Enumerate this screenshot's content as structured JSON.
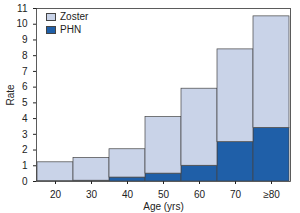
{
  "chart_data": {
    "type": "bar",
    "stacked": true,
    "x_label": "Age (yrs)",
    "y_label": "Rate",
    "categories": [
      "20",
      "30",
      "40",
      "50",
      "60",
      "70",
      "≥80"
    ],
    "series": [
      {
        "name": "Zoster",
        "color": "#c9d3e8",
        "values": [
          1.2,
          1.45,
          1.8,
          3.6,
          4.9,
          5.9,
          7.1
        ]
      },
      {
        "name": "PHN",
        "color": "#1f5fa8",
        "values": [
          0.02,
          0.05,
          0.25,
          0.5,
          1.0,
          2.5,
          3.4
        ]
      }
    ],
    "ylim": [
      0,
      11
    ],
    "yticks": [
      0,
      1,
      2,
      3,
      4,
      5,
      6,
      7,
      8,
      9,
      10,
      11
    ],
    "legend": "top-left"
  }
}
